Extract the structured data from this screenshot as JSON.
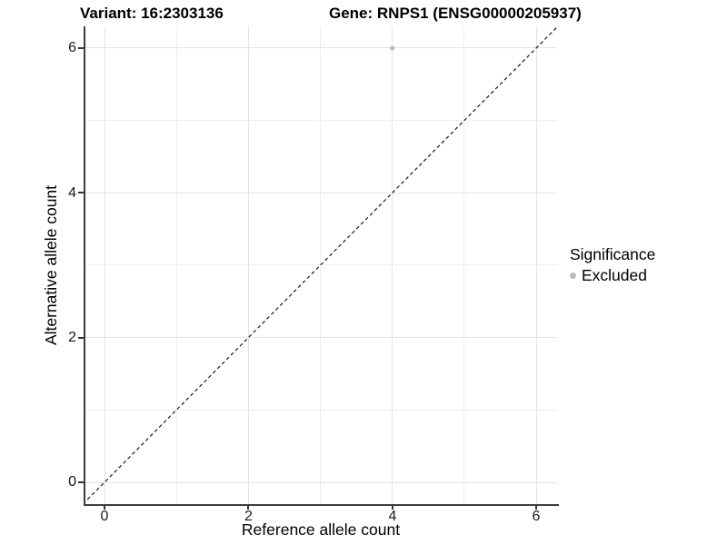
{
  "figure": {
    "title_variant": "Variant: 16:2303136",
    "title_gene": "Gene: RNPS1 (ENSG00000205937)"
  },
  "axes": {
    "x": {
      "label": "Reference allele count",
      "ticks": [
        "0",
        "2",
        "4",
        "6"
      ]
    },
    "y": {
      "label": "Alternative allele count",
      "ticks": [
        "6",
        "4",
        "2",
        "0"
      ]
    }
  },
  "legend": {
    "title": "Significance",
    "items": [
      {
        "label": "Excluded",
        "color": "#bdbdbd"
      }
    ]
  },
  "colors": {
    "point": "#bdbdbd",
    "grid_major": "#e3e3e3",
    "grid_minor": "#ededed",
    "axis_line": "#3d3d3d",
    "reference_line": "#1a1a1a"
  },
  "chart_data": {
    "type": "scatter",
    "title_left": "Variant: 16:2303136",
    "title_right": "Gene: RNPS1 (ENSG00000205937)",
    "xlabel": "Reference allele count",
    "ylabel": "Alternative allele count",
    "xlim": [
      -0.3,
      6.3
    ],
    "ylim": [
      -0.3,
      6.3
    ],
    "x_ticks": [
      0,
      2,
      4,
      6
    ],
    "y_ticks": [
      0,
      2,
      4,
      6
    ],
    "grid": "major+minor",
    "legend_position": "right",
    "series": [
      {
        "name": "Excluded",
        "color": "#bdbdbd",
        "points": [
          {
            "x": 4,
            "y": 6
          }
        ]
      }
    ],
    "reference_line": {
      "type": "identity y=x",
      "style": "dashed",
      "color": "#1a1a1a",
      "from": [
        -0.3,
        -0.3
      ],
      "to": [
        6.3,
        6.3
      ]
    }
  }
}
